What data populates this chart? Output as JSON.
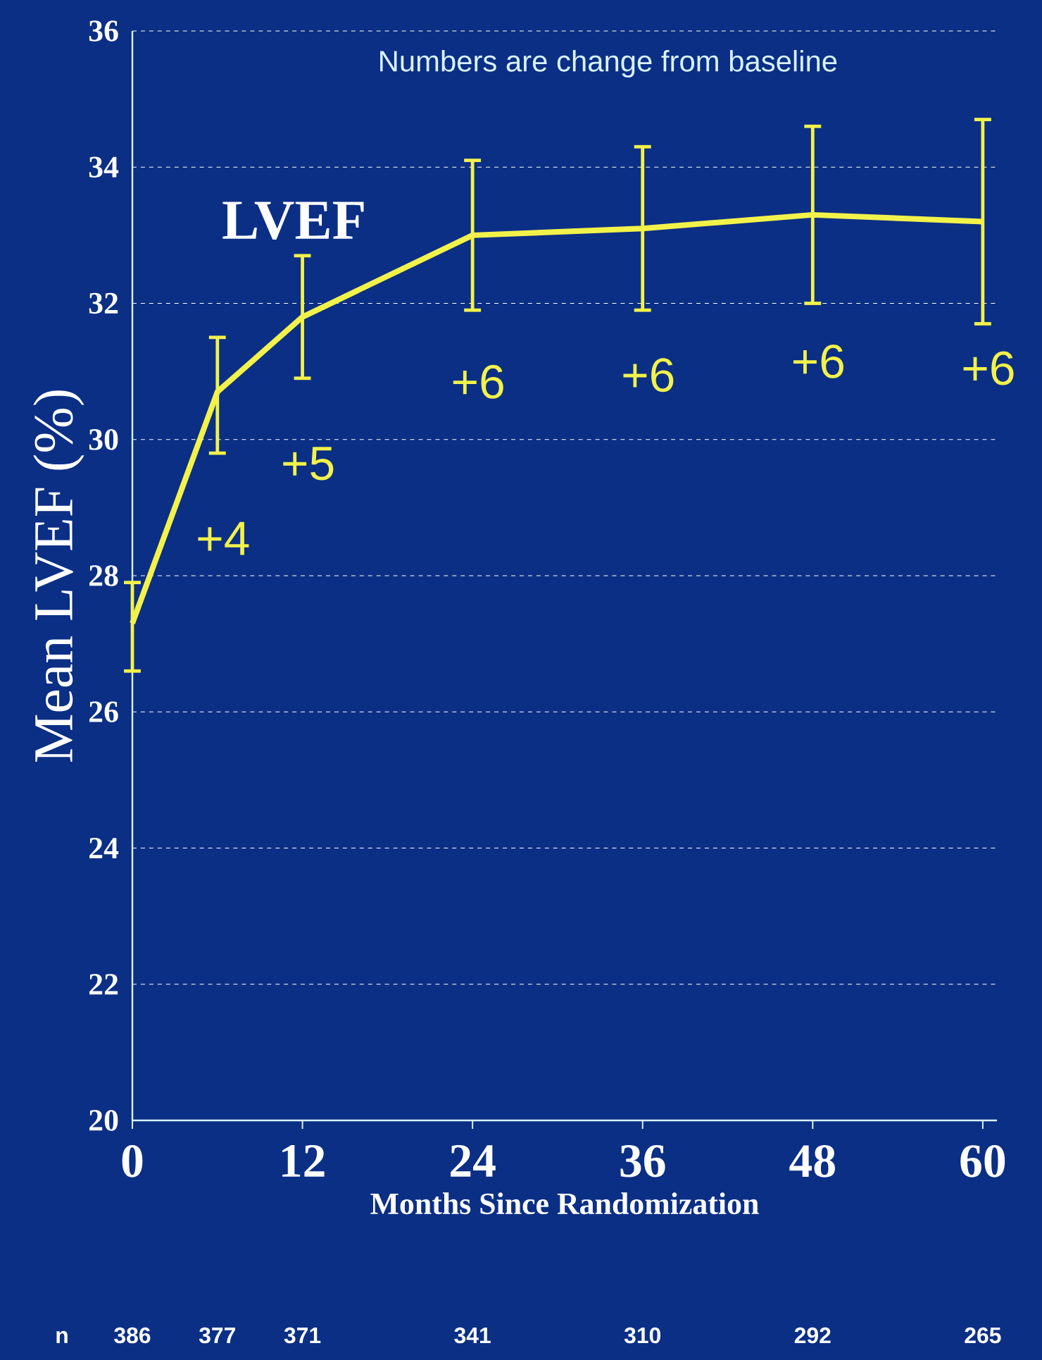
{
  "chart_data": {
    "type": "line",
    "x": [
      0,
      6,
      12,
      24,
      36,
      48,
      60
    ],
    "series": [
      {
        "name": "LVEF",
        "color": "#f2f24a",
        "values": [
          27.3,
          30.7,
          31.8,
          33.0,
          33.1,
          33.3,
          33.2
        ],
        "errors": [
          [
            26.6,
            27.9
          ],
          [
            29.8,
            31.5
          ],
          [
            30.9,
            32.7
          ],
          [
            31.9,
            34.1
          ],
          [
            31.9,
            34.3
          ],
          [
            32.0,
            34.6
          ],
          [
            31.7,
            34.7
          ]
        ]
      }
    ],
    "xlabel": "Months Since Randomization",
    "ylabel": "Mean LVEF (%)",
    "xlim": [
      0,
      61
    ],
    "xticks": [
      0,
      12,
      24,
      36,
      48,
      60
    ],
    "ylim": [
      20,
      36
    ],
    "yticks": [
      20,
      22,
      24,
      26,
      28,
      30,
      32,
      34,
      36
    ],
    "grid": "y",
    "marker": "none",
    "line_style": "solid",
    "legend": false,
    "annotations": [
      "Numbers are change from baseline",
      "n",
      "386",
      "377",
      "371",
      "341",
      "310",
      "292",
      "265",
      {
        "text": "+4",
        "x": 6,
        "y": 30.7
      },
      {
        "text": "+5",
        "x": 12,
        "y": 31.8
      },
      {
        "text": "+6",
        "x": 24,
        "y": 33.0
      },
      {
        "text": "+6",
        "x": 36,
        "y": 33.1
      },
      {
        "text": "+6",
        "x": 48,
        "y": 33.3
      },
      {
        "text": "+6",
        "x": 60,
        "y": 33.2
      }
    ]
  }
}
